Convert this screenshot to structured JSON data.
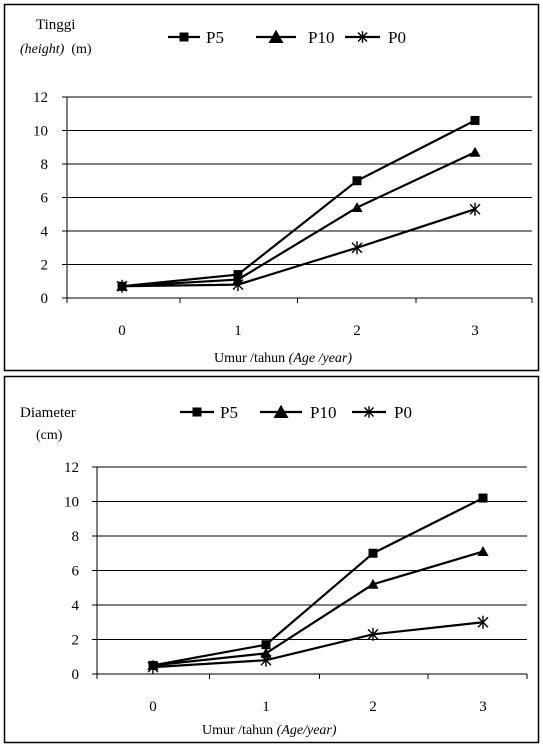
{
  "charts": [
    {
      "ylabel_line1": "Tinggi",
      "ylabel_italic": "(height)",
      "ylabel_unit": "(m)",
      "xlabel_plain": "Umur /tahun",
      "xlabel_italic": "(Age /year)"
    },
    {
      "ylabel_line1": "Diameter",
      "ylabel_unit": "(cm)",
      "xlabel_plain": "Umur  /tahun",
      "xlabel_italic": "(Age/year)"
    }
  ],
  "chart_data": [
    {
      "type": "line",
      "x": [
        0,
        1,
        2,
        3
      ],
      "categories": [
        "0",
        "1",
        "2",
        "3"
      ],
      "ylim": [
        0,
        12
      ],
      "yticks": [
        "0",
        "2",
        "4",
        "6",
        "8",
        "10",
        "12"
      ],
      "ylabel": "Tinggi (height) (m)",
      "xlabel": "Umur /tahun (Age /year)",
      "grid": true,
      "legend": "top",
      "series": [
        {
          "name": "P5",
          "marker": "square",
          "values": [
            0.7,
            1.4,
            7.0,
            10.6
          ]
        },
        {
          "name": "P10",
          "marker": "triangle",
          "values": [
            0.7,
            1.1,
            5.4,
            8.7
          ]
        },
        {
          "name": "P0",
          "marker": "asterisk",
          "values": [
            0.7,
            0.8,
            3.0,
            5.3
          ]
        }
      ]
    },
    {
      "type": "line",
      "x": [
        0,
        1,
        2,
        3
      ],
      "categories": [
        "0",
        "1",
        "2",
        "3"
      ],
      "ylim": [
        0,
        12
      ],
      "yticks": [
        "0",
        "2",
        "4",
        "6",
        "8",
        "10",
        "12"
      ],
      "ylabel": "Diameter (cm)",
      "xlabel": "Umur /tahun (Age/year)",
      "grid": true,
      "legend": "top",
      "series": [
        {
          "name": "P5",
          "marker": "square",
          "values": [
            0.5,
            1.7,
            7.0,
            10.2
          ]
        },
        {
          "name": "P10",
          "marker": "triangle",
          "values": [
            0.5,
            1.2,
            5.2,
            7.1
          ]
        },
        {
          "name": "P0",
          "marker": "asterisk",
          "values": [
            0.4,
            0.8,
            2.3,
            3.0
          ]
        }
      ]
    }
  ]
}
